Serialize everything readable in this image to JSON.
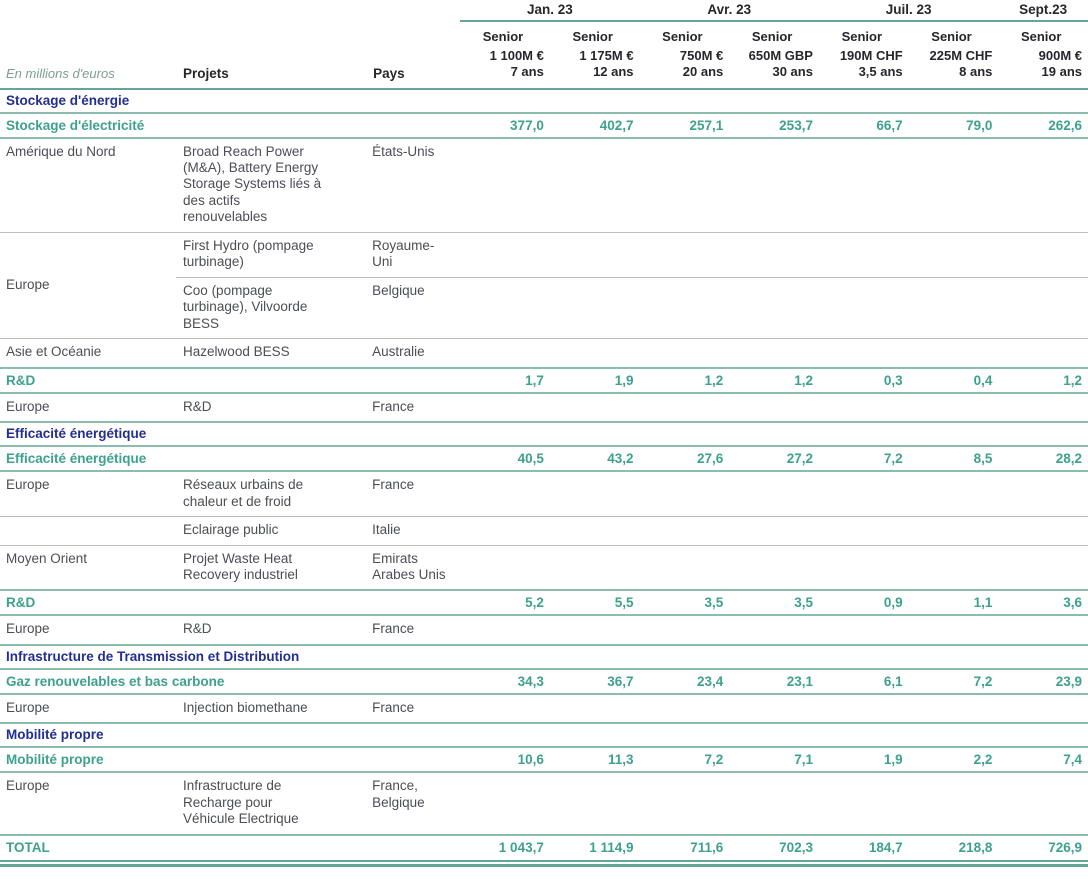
{
  "colors": {
    "navy": "#232e91",
    "teal": "#3da18d",
    "line_light": "#8cbcb0",
    "line_strong": "#63a596",
    "line_gray": "#b9bcc0",
    "body_text": "#4c4e56"
  },
  "header": {
    "unit_note": "En millions d'euros",
    "col_projets": "Projets",
    "col_pays": "Pays",
    "senior_label": "Senior",
    "date_groups": [
      {
        "label": "Jan. 23",
        "span": 2
      },
      {
        "label": "Avr. 23",
        "span": 2
      },
      {
        "label": "Juil. 23",
        "span": 2
      },
      {
        "label": "Sept.23",
        "span": 1
      }
    ],
    "instruments": [
      {
        "amount": "1 100M €",
        "tenor": "7 ans"
      },
      {
        "amount": "1 175M €",
        "tenor": "12 ans"
      },
      {
        "amount": "750M €",
        "tenor": "20 ans"
      },
      {
        "amount": "650M GBP",
        "tenor": "30 ans"
      },
      {
        "amount": "190M CHF",
        "tenor": "3,5 ans"
      },
      {
        "amount": "225M CHF",
        "tenor": "8 ans"
      },
      {
        "amount": "900M €",
        "tenor": "19 ans"
      }
    ]
  },
  "rows": [
    {
      "type": "section",
      "label": "Stockage d'énergie"
    },
    {
      "type": "subsection",
      "label": "Stockage d'électricité",
      "values": [
        "377,0",
        "402,7",
        "257,1",
        "253,7",
        "66,7",
        "79,0",
        "262,6"
      ]
    },
    {
      "type": "detail",
      "region": "Amérique du Nord",
      "cells": [
        {
          "projet": "Broad Reach Power (M&A), Battery Energy Storage Systems liés à des actifs renouvelables",
          "pays": "États-Unis"
        }
      ]
    },
    {
      "type": "detail",
      "region": "Europe",
      "cells": [
        {
          "projet": "First Hydro (pompage turbinage)",
          "pays": "Royaume-Uni"
        },
        {
          "projet": "Coo (pompage turbinage), Vilvoorde BESS",
          "pays": "Belgique"
        }
      ]
    },
    {
      "type": "detail",
      "region": "Asie et Océanie",
      "cells": [
        {
          "projet": "Hazelwood BESS",
          "pays": "Australie"
        }
      ]
    },
    {
      "type": "subsection",
      "label": "R&D",
      "values": [
        "1,7",
        "1,9",
        "1,2",
        "1,2",
        "0,3",
        "0,4",
        "1,2"
      ]
    },
    {
      "type": "detail",
      "region": "Europe",
      "cells": [
        {
          "projet": "R&D",
          "pays": "France"
        }
      ]
    },
    {
      "type": "section",
      "label": "Efficacité énergétique"
    },
    {
      "type": "subsection",
      "label": "Efficacité énergétique",
      "values": [
        "40,5",
        "43,2",
        "27,6",
        "27,2",
        "7,2",
        "8,5",
        "28,2"
      ]
    },
    {
      "type": "detail",
      "region": "Europe",
      "cells": [
        {
          "projet": "Réseaux urbains de chaleur et de froid",
          "pays": "France"
        }
      ]
    },
    {
      "type": "detail",
      "region": "",
      "cells": [
        {
          "projet": "Eclairage public",
          "pays": "Italie"
        }
      ]
    },
    {
      "type": "detail",
      "region": "Moyen Orient",
      "cells": [
        {
          "projet": "Projet Waste Heat Recovery industriel",
          "pays": "Emirats Arabes Unis"
        }
      ]
    },
    {
      "type": "subsection",
      "label": "R&D",
      "values": [
        "5,2",
        "5,5",
        "3,5",
        "3,5",
        "0,9",
        "1,1",
        "3,6"
      ]
    },
    {
      "type": "detail",
      "region": "Europe",
      "cells": [
        {
          "projet": "R&D",
          "pays": "France"
        }
      ]
    },
    {
      "type": "section",
      "label": "Infrastructure de Transmission et Distribution"
    },
    {
      "type": "subsection",
      "label": "Gaz renouvelables et bas carbone",
      "values": [
        "34,3",
        "36,7",
        "23,4",
        "23,1",
        "6,1",
        "7,2",
        "23,9"
      ]
    },
    {
      "type": "detail",
      "region": "Europe",
      "cells": [
        {
          "projet": "Injection biomethane",
          "pays": "France"
        }
      ]
    },
    {
      "type": "section",
      "label": "Mobilité propre"
    },
    {
      "type": "subsection",
      "label": "Mobilité propre",
      "values": [
        "10,6",
        "11,3",
        "7,2",
        "7,1",
        "1,9",
        "2,2",
        "7,4"
      ]
    },
    {
      "type": "detail",
      "region": "Europe",
      "cells": [
        {
          "projet": "Infrastructure de Recharge pour Véhicule Electrique",
          "pays": "France, Belgique"
        }
      ]
    },
    {
      "type": "total",
      "label": "TOTAL",
      "values": [
        "1 043,7",
        "1 114,9",
        "711,6",
        "702,3",
        "184,7",
        "218,8",
        "726,9"
      ]
    }
  ]
}
